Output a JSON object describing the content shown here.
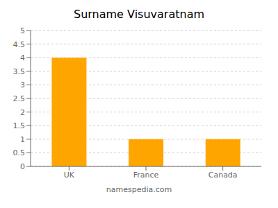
{
  "chart_data": {
    "type": "bar",
    "title": "Surname Visuvaratnam",
    "categories": [
      "UK",
      "France",
      "Canada"
    ],
    "values": [
      4,
      1,
      1
    ],
    "color": "#FFA500",
    "ylim": [
      0,
      5
    ],
    "yticks": [
      0,
      0.5,
      1,
      1.5,
      2,
      2.5,
      3,
      3.5,
      4,
      4.5,
      5
    ],
    "grid": true,
    "annotations": [
      "namespedia.com"
    ]
  }
}
